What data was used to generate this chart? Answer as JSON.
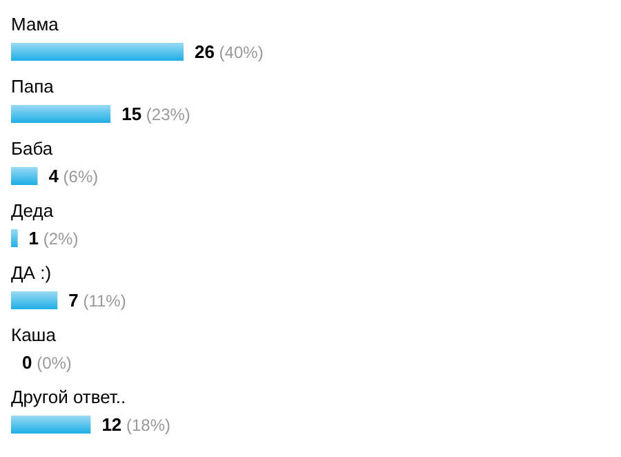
{
  "chart_data": {
    "type": "bar",
    "orientation": "horizontal",
    "categories": [
      "Мама",
      "Папа",
      "Баба",
      "Деда",
      "ДА :)",
      "Каша",
      "Другой ответ.."
    ],
    "values": [
      26,
      15,
      4,
      1,
      7,
      0,
      12
    ],
    "color": "#1eaee6",
    "value_labels": [
      "26 (40%)",
      "15 (23%)",
      "4 (6%)",
      "1 (2%)",
      "7 (11%)",
      "0 (0%)",
      "12 (18%)"
    ]
  }
}
